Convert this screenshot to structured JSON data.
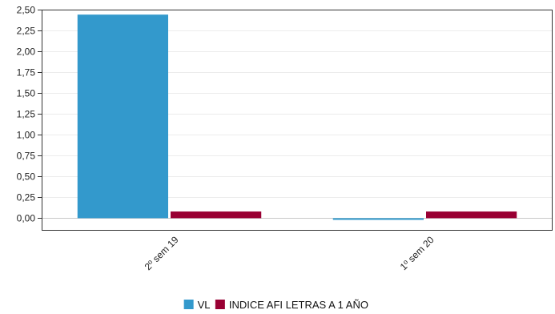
{
  "chart_data": {
    "type": "bar",
    "categories": [
      "2º sem  19",
      "1º sem  20"
    ],
    "series": [
      {
        "name": "VL",
        "color": "#3399cc",
        "values": [
          2.44,
          -0.02
        ]
      },
      {
        "name": "INDICE AFI LETRAS A 1 AÑO",
        "color": "#990033",
        "values": [
          0.08,
          0.08
        ]
      }
    ],
    "ylim": [
      -0.15,
      2.5
    ],
    "yticks": [
      0.0,
      0.25,
      0.5,
      0.75,
      1.0,
      1.25,
      1.5,
      1.75,
      2.0,
      2.25,
      2.5
    ],
    "ytick_labels": [
      "0,00",
      "0,25",
      "0,50",
      "0,75",
      "1,00",
      "1,25",
      "1,50",
      "1,75",
      "2,00",
      "2,25",
      "2,50"
    ],
    "grid": true,
    "legend": "bottom-center",
    "title": "",
    "xlabel": "",
    "ylabel": ""
  }
}
